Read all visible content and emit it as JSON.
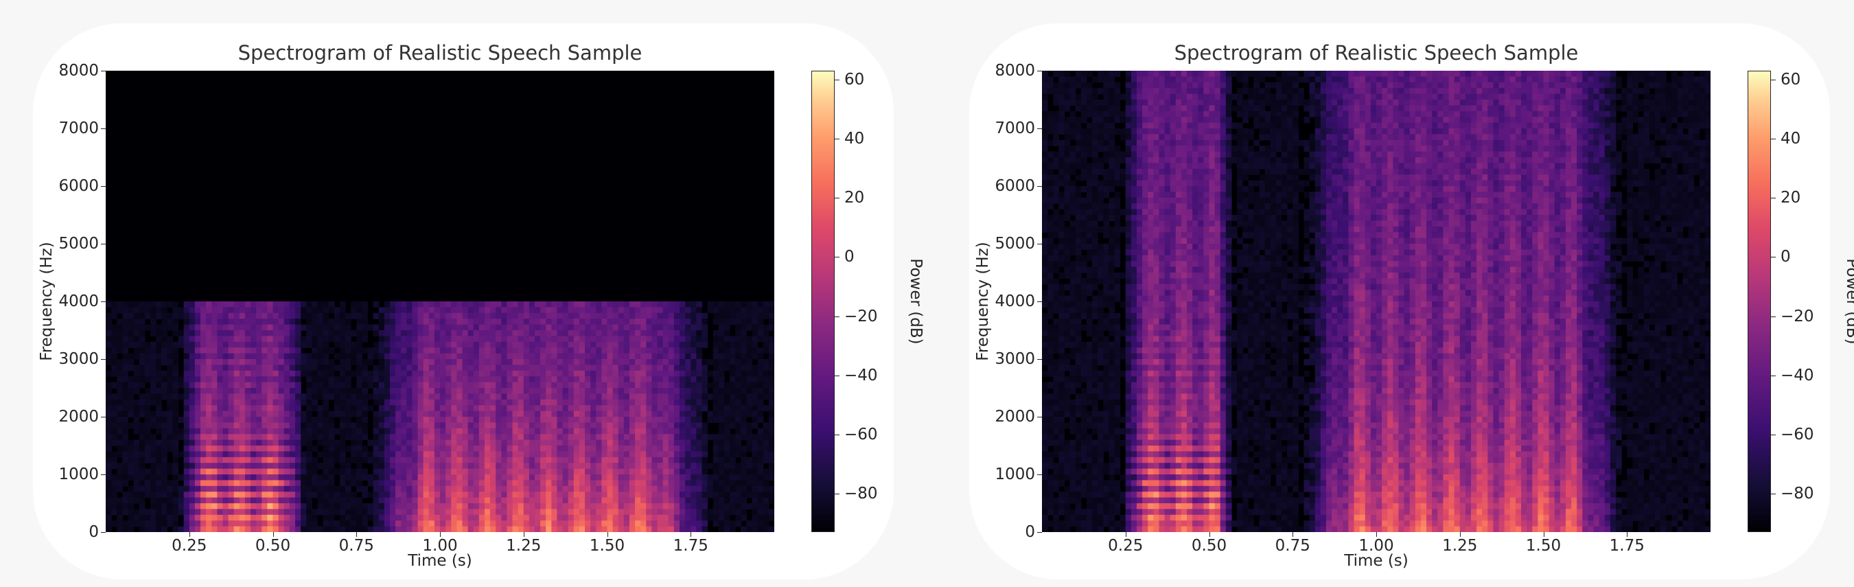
{
  "chart_data": [
    {
      "type": "heatmap",
      "variant": "band-limited",
      "title": "Spectrogram of Realistic Speech Sample",
      "xlabel": "Time (s)",
      "ylabel": "Frequency (Hz)",
      "xlim": [
        0,
        2.0
      ],
      "ylim": [
        0,
        8000
      ],
      "xticks": [
        0.25,
        0.5,
        0.75,
        1.0,
        1.25,
        1.5,
        1.75
      ],
      "xtick_labels": [
        "0.25",
        "0.50",
        "0.75",
        "1.00",
        "1.25",
        "1.50",
        "1.75"
      ],
      "yticks": [
        0,
        1000,
        2000,
        3000,
        4000,
        5000,
        6000,
        7000,
        8000
      ],
      "ytick_labels": [
        "0",
        "1000",
        "2000",
        "3000",
        "4000",
        "5000",
        "6000",
        "7000",
        "8000"
      ],
      "max_freq": 4000,
      "speech_segments": [
        {
          "start": 0.22,
          "end": 0.6,
          "pitch": 210
        },
        {
          "start": 0.78,
          "end": 1.82,
          "pitch": 200
        }
      ],
      "colorbar": {
        "label": "Power (dB)",
        "range": [
          -93,
          63
        ],
        "ticks": [
          60,
          40,
          20,
          0,
          -20,
          -40,
          -60,
          -80
        ],
        "tick_labels": [
          "60",
          "40",
          "20",
          "0",
          "−20",
          "−40",
          "−60",
          "−80"
        ],
        "colormap": "magma"
      }
    },
    {
      "type": "heatmap",
      "variant": "full-band",
      "title": "Spectrogram of Realistic Speech Sample",
      "xlabel": "Time (s)",
      "ylabel": "Frequency (Hz)",
      "xlim": [
        0,
        2.0
      ],
      "ylim": [
        0,
        8000
      ],
      "xticks": [
        0.25,
        0.5,
        0.75,
        1.0,
        1.25,
        1.5,
        1.75
      ],
      "xtick_labels": [
        "0.25",
        "0.50",
        "0.75",
        "1.00",
        "1.25",
        "1.50",
        "1.75"
      ],
      "yticks": [
        0,
        1000,
        2000,
        3000,
        4000,
        5000,
        6000,
        7000,
        8000
      ],
      "ytick_labels": [
        "0",
        "1000",
        "2000",
        "3000",
        "4000",
        "5000",
        "6000",
        "7000",
        "8000"
      ],
      "max_freq": 8000,
      "speech_segments": [
        {
          "start": 0.24,
          "end": 0.58,
          "pitch": 210
        },
        {
          "start": 0.77,
          "end": 1.75,
          "pitch": 200
        }
      ],
      "colorbar": {
        "label": "Power (dB)",
        "range": [
          -93,
          63
        ],
        "ticks": [
          60,
          40,
          20,
          0,
          -20,
          -40,
          -60,
          -80
        ],
        "tick_labels": [
          "60",
          "40",
          "20",
          "0",
          "−20",
          "−40",
          "−60",
          "−80"
        ],
        "colormap": "magma"
      }
    }
  ]
}
